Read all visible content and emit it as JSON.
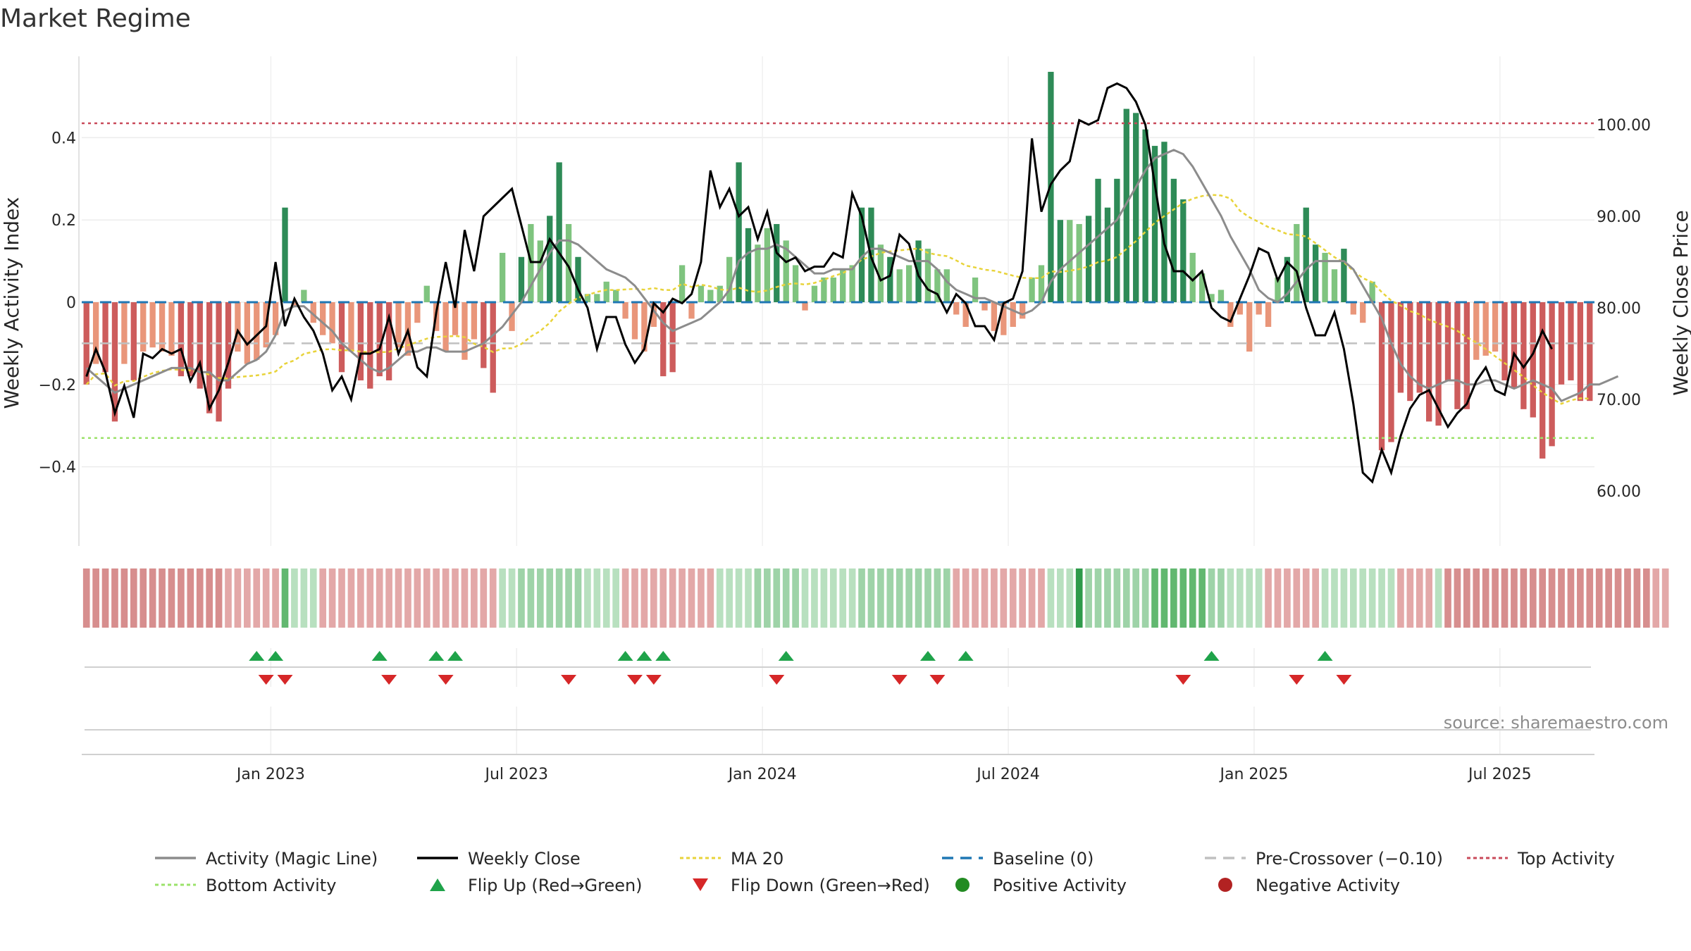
{
  "title": "Market Regime",
  "colors": {
    "pos_dark": "#2e8b57",
    "pos_light": "#7fc47f",
    "neg_dark": "#cd5c5c",
    "neg_light": "#e9967a",
    "close": "#000000",
    "magic": "#8c8c8c",
    "ma20": "#e8d33a",
    "baseline": "#1f77b4",
    "precross": "#c0c0c0",
    "top": "#c94a5a",
    "bottom": "#9be26a",
    "flip_up": "#1fa34a",
    "flip_down": "#d62728",
    "positive": "#228b22",
    "negative": "#b22222"
  },
  "chart_data": {
    "type": "bar",
    "title": "Market Regime",
    "ylabel_left": "Weekly Activity Index",
    "ylabel_right": "Weekly Close Price",
    "left_ticks": [
      "0.4",
      "0.2",
      "0",
      "−0.2",
      "−0.4"
    ],
    "left_tick_values": [
      0.4,
      0.2,
      0,
      -0.2,
      -0.4
    ],
    "right_ticks": [
      "100.00",
      "90.00",
      "80.00",
      "70.00",
      "60.00"
    ],
    "right_tick_values": [
      100,
      90,
      80,
      70,
      60
    ],
    "ylim_left": [
      -0.595,
      0.595
    ],
    "ylim_right": [
      54.73,
      111.11
    ],
    "x_ticks": [
      "Jan 2023",
      "Jul 2023",
      "Jan 2024",
      "Jul 2024",
      "Jan 2025",
      "Jul 2025"
    ],
    "x_tick_weeks": [
      20,
      46,
      72,
      98,
      124,
      150
    ],
    "top_activity": 0.435,
    "bottom_activity": -0.33,
    "pre_crossover": -0.1,
    "baseline": 0,
    "activity": [
      -0.2,
      -0.15,
      -0.17,
      -0.29,
      -0.15,
      -0.19,
      -0.12,
      -0.11,
      -0.12,
      -0.13,
      -0.18,
      -0.18,
      -0.21,
      -0.27,
      -0.29,
      -0.21,
      -0.12,
      -0.15,
      -0.14,
      -0.11,
      -0.08,
      0.23,
      -0.01,
      0.03,
      -0.05,
      -0.08,
      -0.1,
      -0.17,
      -0.12,
      -0.19,
      -0.21,
      -0.18,
      -0.19,
      -0.11,
      -0.13,
      -0.05,
      0.04,
      -0.07,
      -0.12,
      -0.08,
      -0.14,
      -0.09,
      -0.16,
      -0.22,
      0.12,
      -0.07,
      0.11,
      0.19,
      0.15,
      0.21,
      0.34,
      0.19,
      0.11,
      0.02,
      0.02,
      0.05,
      0.03,
      -0.04,
      -0.09,
      -0.12,
      -0.06,
      -0.18,
      -0.17,
      0.09,
      -0.04,
      0.04,
      0.03,
      0.04,
      0.11,
      0.34,
      0.18,
      0.14,
      0.18,
      0.19,
      0.15,
      0.09,
      -0.02,
      0.04,
      0.06,
      0.06,
      0.08,
      0.09,
      0.23,
      0.23,
      0.14,
      0.11,
      0.08,
      0.09,
      0.15,
      0.13,
      0.08,
      0.08,
      -0.03,
      -0.06,
      0.06,
      -0.02,
      -0.07,
      -0.08,
      -0.06,
      -0.04,
      0.06,
      0.09,
      0.56,
      0.2,
      0.2,
      0.19,
      0.21,
      0.3,
      0.23,
      0.3,
      0.47,
      0.46,
      0.42,
      0.38,
      0.39,
      0.3,
      0.25,
      0.12,
      0.07,
      0.02,
      0.03,
      -0.06,
      -0.03,
      -0.12,
      -0.03,
      -0.06,
      0.06,
      0.11,
      0.19,
      0.23,
      0.14,
      0.12,
      0.08,
      0.13,
      -0.03,
      -0.05,
      0.05,
      -0.36,
      -0.34,
      -0.22,
      -0.24,
      -0.22,
      -0.29,
      -0.3,
      -0.19,
      -0.26,
      -0.26,
      -0.14,
      -0.13,
      -0.12,
      -0.19,
      -0.21,
      -0.26,
      -0.28,
      -0.38,
      -0.35,
      -0.2,
      -0.19,
      -0.24,
      -0.24
    ],
    "close": [
      72.5,
      75.5,
      73,
      68.5,
      71.5,
      68,
      75,
      74.5,
      75.5,
      75,
      75.5,
      72,
      74,
      69,
      71,
      74,
      77.5,
      76,
      77,
      78,
      85,
      78,
      81,
      79,
      77.5,
      75,
      71,
      72.5,
      70,
      75,
      75,
      75.5,
      79,
      75,
      77.5,
      73.5,
      72.5,
      79.5,
      85,
      80,
      88.5,
      84,
      90,
      91,
      92,
      93,
      89,
      85,
      85,
      87.5,
      86,
      84.5,
      82,
      80,
      75.5,
      79,
      79,
      76,
      74,
      75.5,
      80.5,
      79.5,
      81,
      80.5,
      81.5,
      85,
      95,
      91,
      93,
      90,
      91,
      87.5,
      90.5,
      86,
      85,
      85.5,
      84,
      84.5,
      84.5,
      86,
      85.5,
      92.5,
      90,
      85.5,
      83,
      83.5,
      88,
      87,
      83.5,
      82,
      81.5,
      79.5,
      81.5,
      80.5,
      78,
      78,
      76.5,
      80.5,
      81,
      84,
      98.5,
      90.5,
      93.5,
      95,
      96,
      100.5,
      100,
      100.5,
      104,
      104.5,
      104,
      102.5,
      100,
      93.5,
      87,
      84,
      84,
      83,
      84,
      80,
      79,
      78.5,
      81,
      83.5,
      86.5,
      86,
      83,
      85,
      84,
      80,
      77,
      77,
      79.5,
      75.5,
      69.5,
      62,
      61,
      64.5,
      62,
      66,
      69,
      70.5,
      71,
      69,
      67,
      68.5,
      69.5,
      72,
      73.5,
      71,
      70.5,
      75,
      73.5,
      75,
      77.5,
      75.5
    ],
    "magic": [
      -0.16,
      -0.18,
      -0.2,
      -0.22,
      -0.21,
      -0.2,
      -0.19,
      -0.18,
      -0.17,
      -0.16,
      -0.16,
      -0.16,
      -0.17,
      -0.17,
      -0.19,
      -0.19,
      -0.17,
      -0.15,
      -0.14,
      -0.12,
      -0.08,
      -0.02,
      -0.01,
      -0.01,
      -0.03,
      -0.05,
      -0.07,
      -0.1,
      -0.12,
      -0.14,
      -0.16,
      -0.17,
      -0.16,
      -0.14,
      -0.12,
      -0.12,
      -0.11,
      -0.11,
      -0.12,
      -0.12,
      -0.12,
      -0.11,
      -0.1,
      -0.08,
      -0.06,
      -0.03,
      0.0,
      0.04,
      0.08,
      0.12,
      0.15,
      0.15,
      0.14,
      0.12,
      0.1,
      0.08,
      0.07,
      0.06,
      0.04,
      0.01,
      -0.02,
      -0.05,
      -0.07,
      -0.06,
      -0.05,
      -0.04,
      -0.02,
      0.0,
      0.03,
      0.1,
      0.12,
      0.13,
      0.13,
      0.14,
      0.13,
      0.11,
      0.09,
      0.07,
      0.07,
      0.08,
      0.08,
      0.08,
      0.11,
      0.13,
      0.13,
      0.12,
      0.11,
      0.1,
      0.1,
      0.1,
      0.08,
      0.05,
      0.03,
      0.02,
      0.01,
      0.01,
      0.0,
      -0.01,
      -0.02,
      -0.03,
      -0.02,
      0.0,
      0.05,
      0.08,
      0.1,
      0.12,
      0.14,
      0.16,
      0.18,
      0.2,
      0.24,
      0.28,
      0.32,
      0.35,
      0.36,
      0.37,
      0.36,
      0.33,
      0.29,
      0.25,
      0.21,
      0.16,
      0.12,
      0.08,
      0.03,
      0.01,
      0.0,
      0.02,
      0.05,
      0.08,
      0.1,
      0.1,
      0.1,
      0.1,
      0.08,
      0.04,
      0.0,
      -0.04,
      -0.1,
      -0.15,
      -0.18,
      -0.2,
      -0.21,
      -0.2,
      -0.19,
      -0.19,
      -0.2,
      -0.2,
      -0.19,
      -0.19,
      -0.2,
      -0.21,
      -0.2,
      -0.19,
      -0.2,
      -0.21,
      -0.24,
      -0.23,
      -0.22,
      -0.2,
      -0.2,
      -0.19,
      -0.18
    ]
  },
  "regime_strip": [
    1,
    1,
    1,
    1,
    1,
    1,
    1,
    1,
    1,
    1,
    1,
    1,
    1,
    1,
    1,
    0,
    0,
    0,
    0,
    0,
    0,
    4,
    2,
    2,
    2,
    0,
    0,
    0,
    0,
    0,
    0,
    0,
    0,
    0,
    0,
    0,
    0,
    0,
    0,
    0,
    0,
    0,
    0,
    0,
    2,
    2,
    3,
    3,
    3,
    3,
    3,
    3,
    3,
    2,
    2,
    2,
    2,
    0,
    0,
    0,
    0,
    0,
    0,
    0,
    0,
    0,
    0,
    2,
    2,
    2,
    2,
    3,
    3,
    3,
    3,
    3,
    2,
    2,
    2,
    2,
    2,
    2,
    3,
    3,
    3,
    3,
    3,
    3,
    3,
    3,
    3,
    3,
    0,
    0,
    0,
    0,
    0,
    0,
    0,
    0,
    0,
    0,
    2,
    2,
    2,
    5,
    3,
    3,
    3,
    3,
    3,
    3,
    3,
    4,
    4,
    4,
    4,
    4,
    4,
    3,
    3,
    2,
    2,
    2,
    2,
    0,
    0,
    0,
    0,
    0,
    0,
    2,
    2,
    2,
    2,
    2,
    2,
    2,
    2,
    0,
    0,
    0,
    0,
    2,
    1,
    1,
    1,
    1,
    1,
    1,
    1,
    1,
    1,
    1,
    1,
    1,
    1,
    1,
    1,
    1,
    1,
    1,
    1,
    1,
    1,
    1,
    0,
    0
  ],
  "flip_up_weeks": [
    18,
    20,
    31,
    37,
    39,
    57,
    59,
    61,
    74,
    89,
    93,
    119,
    131
  ],
  "flip_down_weeks": [
    19,
    21,
    32,
    38,
    51,
    58,
    60,
    73,
    86,
    90,
    116,
    128,
    133
  ],
  "source": "source: sharemaestro.com",
  "legend": {
    "magic": "Activity (Magic Line)",
    "close": "Weekly Close",
    "ma20": "MA 20",
    "baseline": "Baseline (0)",
    "precross": "Pre-Crossover (−0.10)",
    "top": "Top Activity",
    "bottom": "Bottom Activity",
    "flip_up": "Flip Up (Red→Green)",
    "flip_down": "Flip Down (Green→Red)",
    "positive": "Positive Activity",
    "negative": "Negative Activity"
  }
}
